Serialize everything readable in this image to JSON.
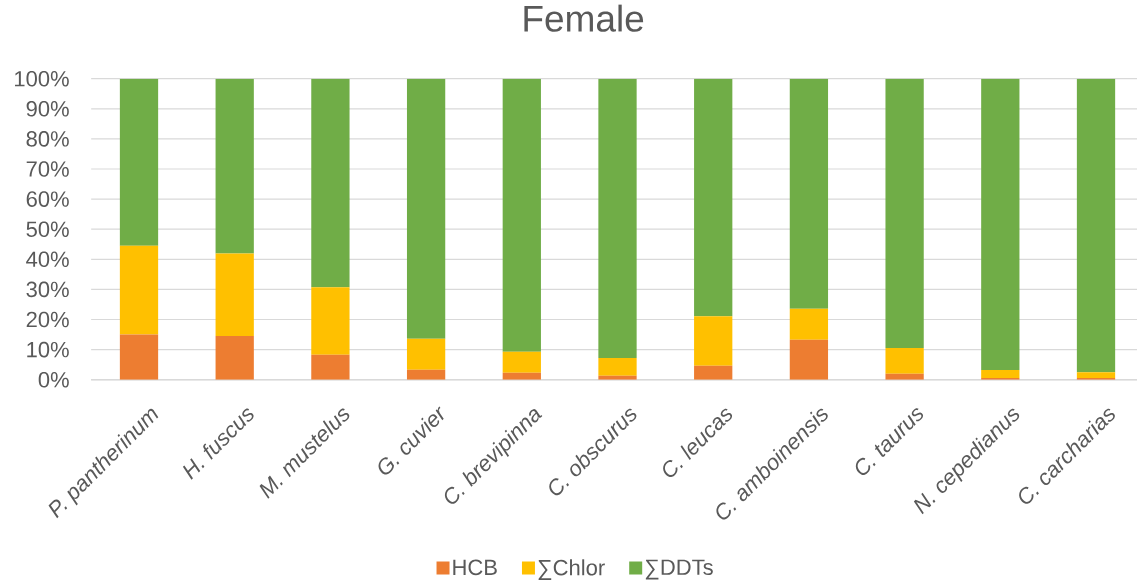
{
  "chart_data": {
    "type": "bar",
    "title": "Female",
    "stacked": true,
    "categories": [
      "P. pantherinum",
      "H. fuscus",
      "M. mustelus",
      "G. cuvier",
      "C. brevipinna",
      "C. obscurus",
      "C. leucas",
      "C. amboinensis",
      "C. taurus",
      "N. cepedianus",
      "C. carcharias"
    ],
    "series": [
      {
        "name": "HCB",
        "color": "#ed7d31",
        "values": [
          15,
          14.5,
          8.3,
          3.3,
          2.3,
          1.3,
          4.6,
          13.3,
          2.0,
          0.6,
          0.6
        ]
      },
      {
        "name": "∑Chlor",
        "color": "#ffc000",
        "values": [
          29.5,
          27.4,
          22.4,
          10.3,
          7.0,
          5.9,
          16.5,
          10.3,
          8.5,
          2.6,
          1.9
        ]
      },
      {
        "name": "∑DDTs",
        "color": "#70ad47",
        "values": [
          55.5,
          58.1,
          69.3,
          86.4,
          90.7,
          92.8,
          78.9,
          76.4,
          89.5,
          96.8,
          97.5
        ]
      }
    ],
    "ylim": [
      0,
      100
    ],
    "yticks": [
      {
        "value": 0,
        "label": "0%"
      },
      {
        "value": 10,
        "label": "10%"
      },
      {
        "value": 20,
        "label": "20%"
      },
      {
        "value": 30,
        "label": "30%"
      },
      {
        "value": 40,
        "label": "40%"
      },
      {
        "value": 50,
        "label": "50%"
      },
      {
        "value": 60,
        "label": "60%"
      },
      {
        "value": 70,
        "label": "70%"
      },
      {
        "value": 80,
        "label": "80%"
      },
      {
        "value": 90,
        "label": "90%"
      },
      {
        "value": 100,
        "label": "100%"
      }
    ],
    "grid": "y",
    "legend": "bottom"
  }
}
